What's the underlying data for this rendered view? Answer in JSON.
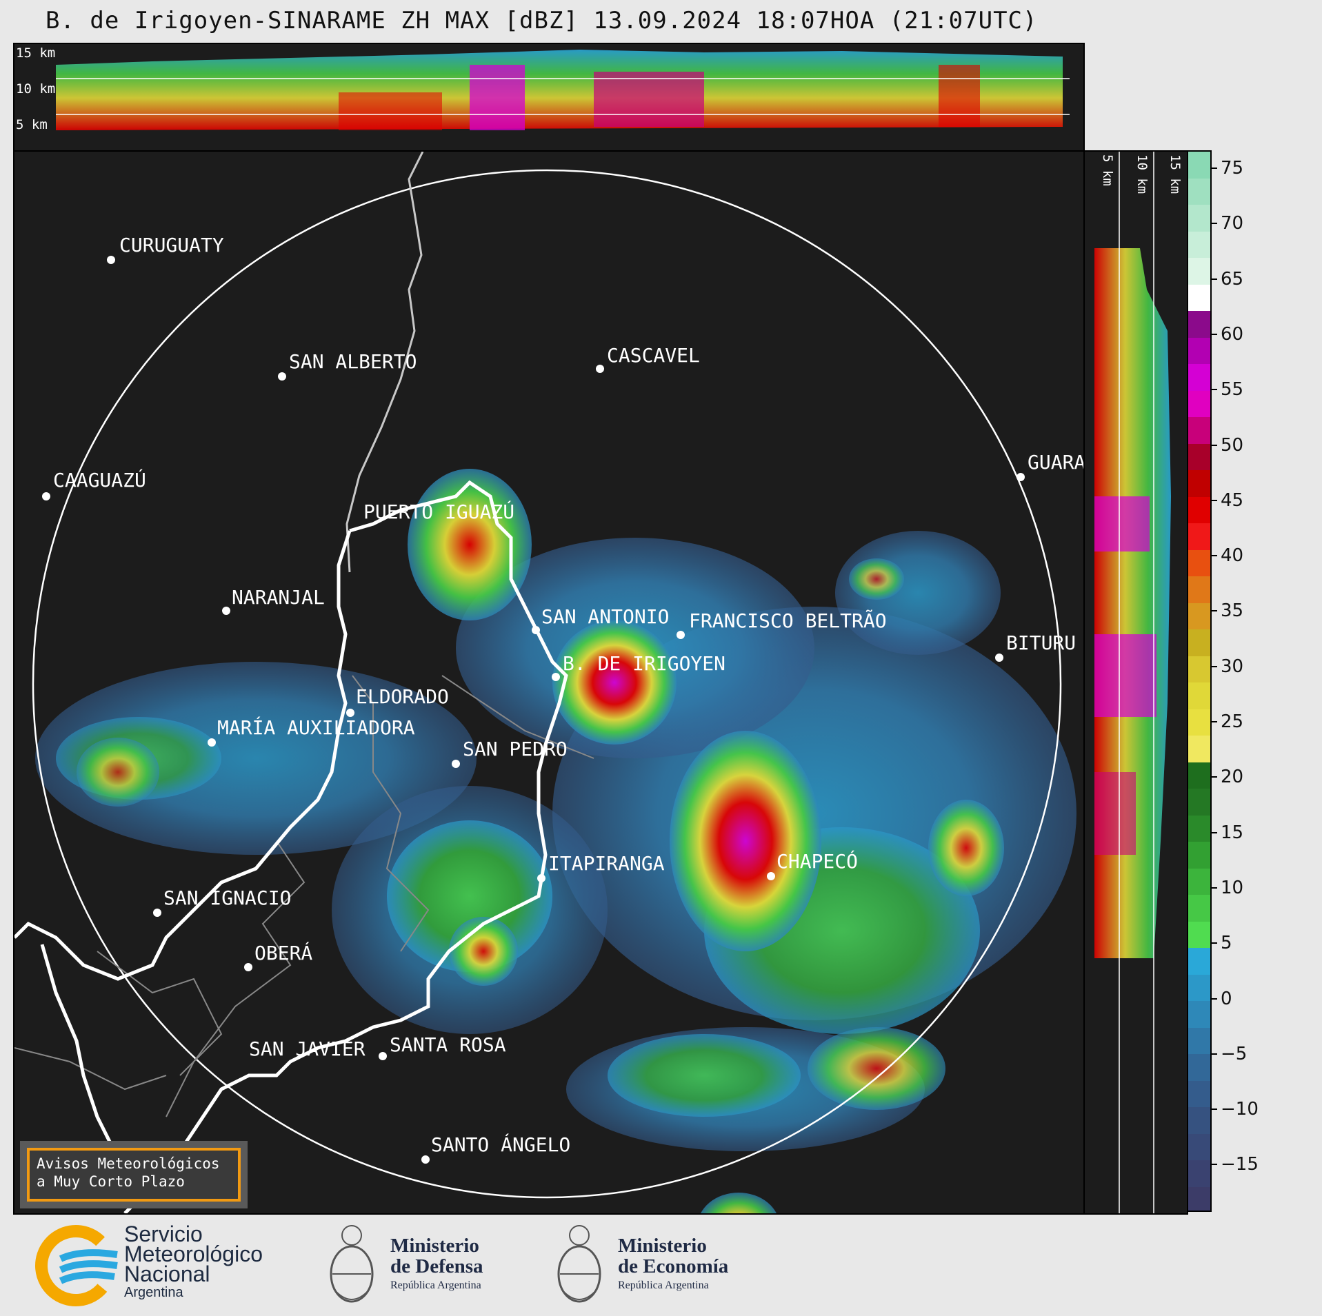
{
  "title": "B. de Irigoyen-SINARAME ZH MAX [dBZ] 13.09.2024 18:07HOA (21:07UTC)",
  "top_section": {
    "levels": [
      "15 km",
      "10 km",
      "5 km"
    ]
  },
  "right_section": {
    "levels": [
      "5 km",
      "10 km",
      "15 km"
    ]
  },
  "cities": [
    {
      "name": "CURUGUATY"
    },
    {
      "name": "SAN ALBERTO"
    },
    {
      "name": "CASCAVEL"
    },
    {
      "name": "CAAGUAZÚ"
    },
    {
      "name": "GUARA"
    },
    {
      "name": "PUERTO IGUAZÚ"
    },
    {
      "name": "NARANJAL"
    },
    {
      "name": "SAN ANTONIO"
    },
    {
      "name": "FRANCISCO BELTRÃO"
    },
    {
      "name": "BITURU"
    },
    {
      "name": "B. DE IRIGOYEN"
    },
    {
      "name": "ELDORADO"
    },
    {
      "name": "MARÍA AUXILIADORA"
    },
    {
      "name": "SAN PEDRO"
    },
    {
      "name": "ITAPIRANGA"
    },
    {
      "name": "CHAPECÓ"
    },
    {
      "name": "SAN IGNACIO"
    },
    {
      "name": "OBERÁ"
    },
    {
      "name": "SAN JAVIER"
    },
    {
      "name": "SANTA ROSA"
    },
    {
      "name": "SANTO ÁNGELO"
    }
  ],
  "colorbar": {
    "ticks": [
      "75",
      "70",
      "65",
      "60",
      "55",
      "50",
      "45",
      "40",
      "35",
      "30",
      "25",
      "20",
      "15",
      "10",
      "5",
      "0",
      "−5",
      "−10",
      "−15"
    ],
    "segments": [
      "#8ad9b4",
      "#9fe0c0",
      "#b3e7cc",
      "#c8eed9",
      "#ddf5e6",
      "#ffffff",
      "#8b0a8b",
      "#b200b2",
      "#d400d4",
      "#e000c0",
      "#c8007a",
      "#a8002a",
      "#c00000",
      "#e00000",
      "#f01818",
      "#e85010",
      "#e07818",
      "#d89820",
      "#c8b020",
      "#d8c830",
      "#e0d838",
      "#e8e040",
      "#f0e860",
      "#1e6e1e",
      "#247824",
      "#2a8a2a",
      "#32a032",
      "#3cb43c",
      "#46c846",
      "#50dc50",
      "#2aa8d8",
      "#2c98c8",
      "#2e88b8",
      "#3078a8",
      "#326898",
      "#345c8c",
      "#365280",
      "#384a78",
      "#3a4270",
      "#3c3c68"
    ]
  },
  "notice": {
    "line1": "Avisos Meteorológicos",
    "line2": "a Muy Corto Plazo"
  },
  "footer": {
    "smn_line1": "Servicio",
    "smn_line2": "Meteorológico",
    "smn_line3": "Nacional",
    "smn_line4": "Argentina",
    "defensa_line1": "Ministerio",
    "defensa_line2": "de Defensa",
    "defensa_line3": "República Argentina",
    "economia_line1": "Ministerio",
    "economia_line2": "de Economía",
    "economia_line3": "República Argentina"
  },
  "colors": {
    "background": "#1c1c1c",
    "accent_orange": "#f29a12",
    "smn_blue": "#2aa8e0",
    "smn_yellow": "#f5a800"
  }
}
